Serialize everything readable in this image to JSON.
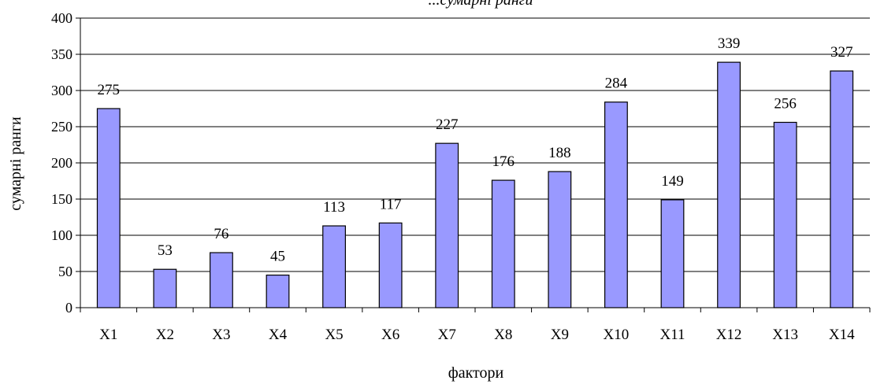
{
  "chart_data": {
    "type": "bar",
    "title": "...сумарні ранги",
    "xlabel": "фактори",
    "ylabel": "сумарні ранги",
    "categories": [
      "X1",
      "X2",
      "X3",
      "X4",
      "X5",
      "X6",
      "X7",
      "X8",
      "X9",
      "X10",
      "X11",
      "X12",
      "X13",
      "X14"
    ],
    "values": [
      275,
      53,
      76,
      45,
      113,
      117,
      227,
      176,
      188,
      284,
      149,
      339,
      256,
      327
    ],
    "ylim": [
      0,
      400
    ],
    "yticks": [
      0,
      50,
      100,
      150,
      200,
      250,
      300,
      350,
      400
    ],
    "grid": true,
    "bar_color": "#9999ff",
    "bar_edge_color": "#000000",
    "legend": "none"
  }
}
